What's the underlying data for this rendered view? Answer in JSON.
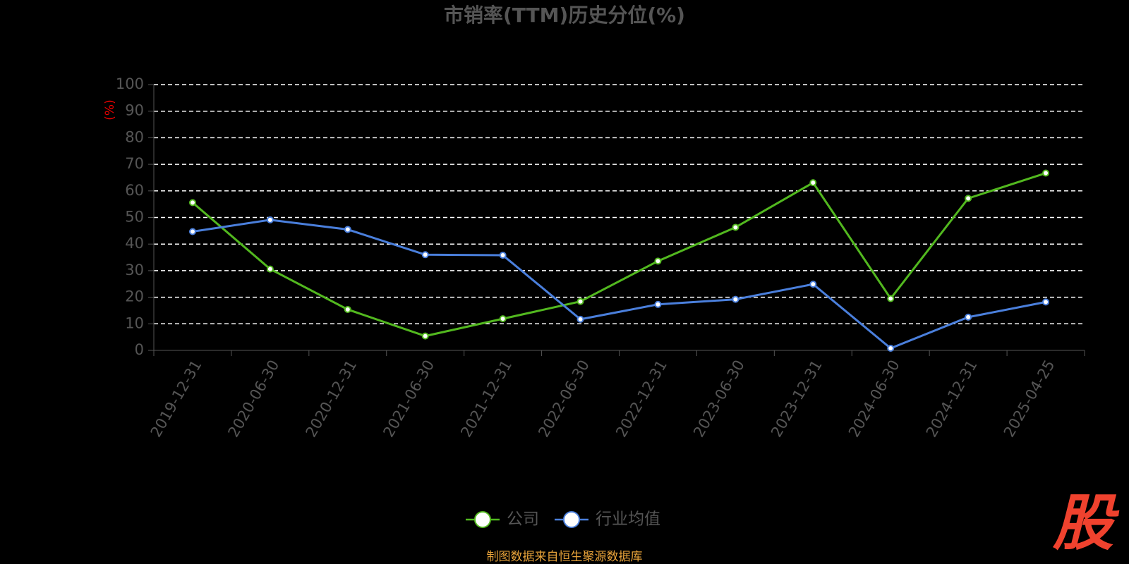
{
  "chart_data": {
    "type": "line",
    "title": "市销率(TTM)历史分位(%)",
    "y_label": "(%)",
    "categories": [
      "2019-12-31",
      "2020-06-30",
      "2020-12-31",
      "2021-06-30",
      "2021-12-31",
      "2022-06-30",
      "2022-12-31",
      "2023-06-30",
      "2023-12-31",
      "2024-06-30",
      "2024-12-31",
      "2025-04-25"
    ],
    "series": [
      {
        "name": "公司",
        "color": "#52b81f",
        "values": [
          55.6,
          30.6,
          15.4,
          5.4,
          11.9,
          18.4,
          33.6,
          46.3,
          63.1,
          19.5,
          57.2,
          66.7
        ]
      },
      {
        "name": "行业均值",
        "color": "#4a7fdc",
        "values": [
          44.7,
          49.1,
          45.5,
          36.0,
          35.8,
          11.7,
          17.3,
          19.2,
          24.9,
          0.8,
          12.5,
          18.2
        ]
      }
    ],
    "ylim": [
      0,
      100
    ],
    "yticks": [
      0,
      10,
      20,
      30,
      40,
      50,
      60,
      70,
      80,
      90,
      100
    ],
    "grid": true,
    "source": "制图数据来自恒生聚源数据库",
    "watermark": "股"
  }
}
